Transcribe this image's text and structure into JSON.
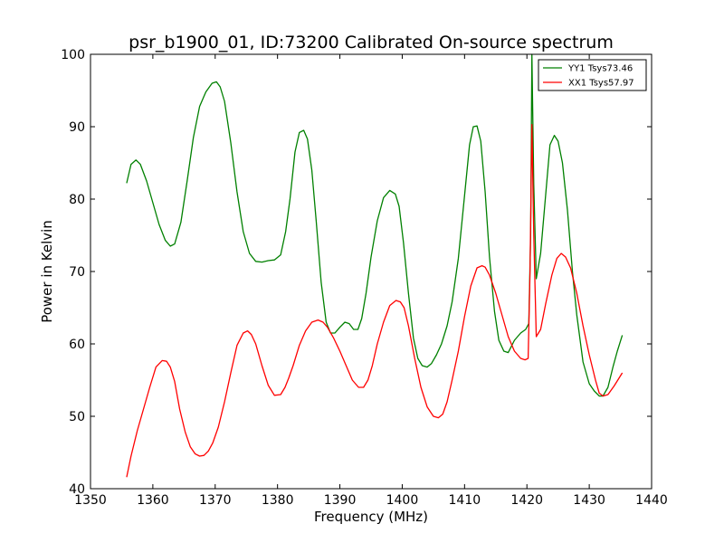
{
  "chart_data": {
    "type": "line",
    "title": "psr_b1900_01, ID:73200 Calibrated On-source spectrum",
    "xlabel": "Frequency (MHz)",
    "ylabel": "Power in Kelvin",
    "xlim": [
      1350,
      1440
    ],
    "ylim": [
      40,
      100
    ],
    "xticks": [
      1350,
      1360,
      1370,
      1380,
      1390,
      1400,
      1410,
      1420,
      1430,
      1440
    ],
    "yticks": [
      40,
      50,
      60,
      70,
      80,
      90,
      100
    ],
    "grid": false,
    "legend_position": "top-right",
    "series": [
      {
        "name": "YY1 Tsys73.46",
        "color": "#008000",
        "x": [
          1355.8,
          1356.5,
          1357.3,
          1358.0,
          1359.0,
          1360.0,
          1361.0,
          1362.0,
          1362.8,
          1363.5,
          1364.5,
          1365.5,
          1366.5,
          1367.5,
          1368.5,
          1369.5,
          1370.2,
          1370.8,
          1371.5,
          1372.5,
          1373.5,
          1374.5,
          1375.5,
          1376.5,
          1377.5,
          1378.5,
          1379.5,
          1380.5,
          1381.3,
          1382.0,
          1382.8,
          1383.5,
          1384.2,
          1384.8,
          1385.5,
          1386.2,
          1387.0,
          1387.8,
          1388.5,
          1389.2,
          1390.0,
          1390.8,
          1391.5,
          1392.2,
          1392.9,
          1393.5,
          1394.2,
          1395.0,
          1396.0,
          1397.0,
          1398.0,
          1398.9,
          1399.5,
          1400.2,
          1401.0,
          1401.8,
          1402.5,
          1403.2,
          1404.0,
          1404.7,
          1405.5,
          1406.3,
          1407.2,
          1408.0,
          1409.0,
          1410.0,
          1410.8,
          1411.4,
          1412.0,
          1412.6,
          1413.3,
          1414.0,
          1414.8,
          1415.5,
          1416.3,
          1417.0,
          1418.0,
          1419.0,
          1419.8,
          1420.3,
          1420.6,
          1420.8,
          1421.1,
          1421.5,
          1422.2,
          1423.0,
          1423.7,
          1424.4,
          1425.0,
          1425.7,
          1426.5,
          1427.3,
          1428.0,
          1429.0,
          1430.0,
          1430.8,
          1431.6,
          1432.2,
          1433.0,
          1433.8,
          1434.5,
          1435.3
        ],
        "y": [
          82.2,
          84.8,
          85.4,
          84.8,
          82.5,
          79.5,
          76.5,
          74.3,
          73.5,
          73.8,
          76.8,
          82.5,
          88.5,
          92.8,
          94.8,
          96.0,
          96.2,
          95.5,
          93.5,
          87.8,
          81.0,
          75.5,
          72.5,
          71.4,
          71.3,
          71.5,
          71.6,
          72.3,
          75.5,
          80.0,
          86.5,
          89.2,
          89.5,
          88.3,
          84.0,
          77.0,
          68.5,
          63.0,
          61.5,
          61.5,
          62.3,
          63.0,
          62.8,
          62.0,
          62.0,
          63.5,
          67.0,
          72.0,
          77.0,
          80.2,
          81.2,
          80.7,
          79.0,
          74.0,
          67.0,
          60.8,
          58.0,
          57.0,
          56.8,
          57.3,
          58.5,
          60.0,
          62.5,
          65.8,
          71.8,
          80.5,
          87.5,
          90.0,
          90.1,
          88.0,
          81.0,
          72.0,
          64.5,
          60.5,
          59.0,
          58.8,
          60.5,
          61.5,
          62.0,
          62.8,
          75.0,
          100.0,
          82.0,
          69.0,
          72.5,
          80.5,
          87.5,
          88.8,
          88.0,
          85.0,
          78.5,
          70.0,
          64.0,
          57.5,
          54.5,
          53.5,
          52.8,
          52.8,
          54.0,
          56.8,
          59.0,
          61.2
        ]
      },
      {
        "name": "XX1 Tsys57.97",
        "color": "#ff0000",
        "x": [
          1355.8,
          1356.5,
          1357.5,
          1358.5,
          1359.5,
          1360.5,
          1361.5,
          1362.2,
          1362.8,
          1363.5,
          1364.3,
          1365.2,
          1366.0,
          1366.8,
          1367.5,
          1368.2,
          1368.9,
          1369.6,
          1370.5,
          1371.5,
          1372.5,
          1373.5,
          1374.5,
          1375.2,
          1375.8,
          1376.5,
          1377.5,
          1378.5,
          1379.5,
          1380.5,
          1381.2,
          1381.8,
          1382.5,
          1383.5,
          1384.5,
          1385.5,
          1386.5,
          1387.3,
          1388.0,
          1389.0,
          1390.0,
          1391.0,
          1392.0,
          1393.0,
          1393.8,
          1394.5,
          1395.2,
          1396.0,
          1397.0,
          1398.0,
          1399.0,
          1399.7,
          1400.3,
          1401.0,
          1402.0,
          1403.0,
          1404.0,
          1405.0,
          1405.8,
          1406.5,
          1407.2,
          1408.0,
          1409.0,
          1410.0,
          1411.0,
          1412.0,
          1412.8,
          1413.3,
          1414.0,
          1415.0,
          1416.0,
          1417.0,
          1418.0,
          1419.0,
          1419.7,
          1420.2,
          1420.5,
          1420.8,
          1421.1,
          1421.5,
          1422.2,
          1423.0,
          1424.0,
          1424.8,
          1425.5,
          1426.2,
          1427.0,
          1428.0,
          1429.0,
          1430.0,
          1431.0,
          1431.6,
          1432.2,
          1433.0,
          1434.0,
          1435.3
        ],
        "y": [
          41.6,
          44.5,
          48.0,
          51.0,
          54.0,
          56.8,
          57.7,
          57.6,
          56.8,
          54.8,
          51.0,
          47.8,
          45.8,
          44.8,
          44.5,
          44.6,
          45.2,
          46.3,
          48.5,
          52.0,
          56.0,
          59.8,
          61.5,
          61.8,
          61.3,
          60.0,
          57.0,
          54.3,
          52.9,
          53.0,
          54.0,
          55.3,
          57.0,
          59.8,
          61.8,
          63.0,
          63.3,
          63.0,
          62.3,
          60.8,
          59.0,
          57.0,
          55.0,
          54.0,
          54.0,
          55.0,
          57.0,
          60.0,
          63.0,
          65.3,
          66.0,
          65.8,
          65.0,
          62.5,
          58.0,
          54.0,
          51.3,
          50.0,
          49.8,
          50.3,
          52.0,
          55.0,
          59.0,
          63.8,
          68.0,
          70.5,
          70.8,
          70.6,
          69.5,
          67.0,
          64.0,
          61.0,
          59.0,
          58.0,
          57.8,
          58.0,
          70.0,
          90.3,
          75.0,
          61.0,
          62.0,
          65.5,
          69.5,
          71.8,
          72.5,
          72.0,
          70.5,
          67.0,
          62.5,
          58.5,
          55.0,
          53.2,
          52.8,
          53.0,
          54.2,
          56.0
        ]
      }
    ]
  }
}
